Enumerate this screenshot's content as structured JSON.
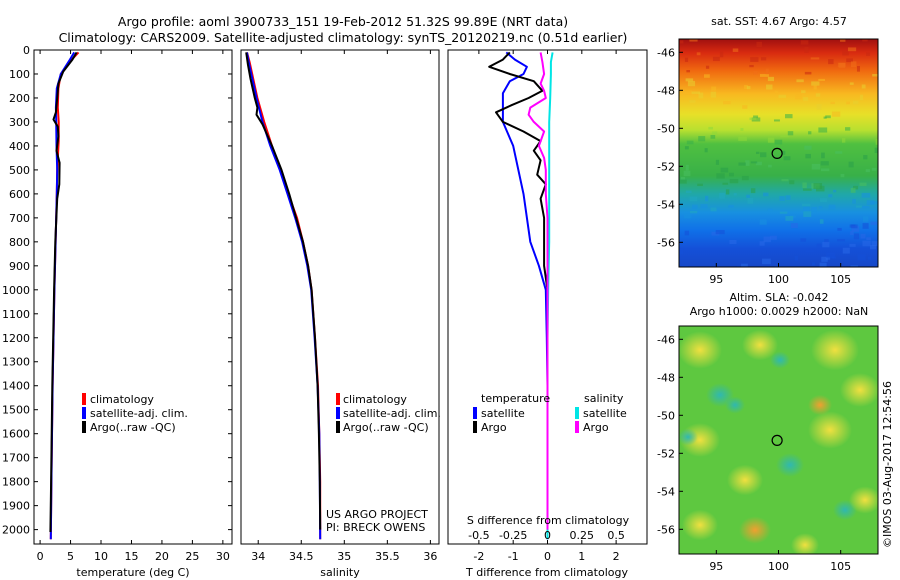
{
  "title": {
    "line1": "Argo profile: aoml 3900733_151 19-Feb-2012 51.32S 99.89E (NRT data)",
    "line2": "Climatology: CARS2009. Satellite-adjusted climatology: synTS_20120219.nc (0.51d earlier)"
  },
  "colors": {
    "climatology": "#ff0000",
    "satellite": "#0000ff",
    "argo": "#000000",
    "sal_satellite": "#00e5e5",
    "sal_argo": "#ff00ff"
  },
  "depth_axis": {
    "ticks": [
      0,
      100,
      200,
      300,
      400,
      500,
      600,
      700,
      800,
      900,
      1000,
      1100,
      1200,
      1300,
      1400,
      1500,
      1600,
      1700,
      1800,
      1900,
      2000
    ],
    "ylim": [
      0,
      2060
    ]
  },
  "legend_main": {
    "climatology": "climatology",
    "satellite": "satellite-adj. clim.",
    "argo": "Argo(..raw -QC)"
  },
  "legend_diff": {
    "temperature": "temperature",
    "salinity": "salinity",
    "satellite": "satellite",
    "argo": "Argo"
  },
  "credit": {
    "line1": "US ARGO PROJECT",
    "line2": "PI: BRECK OWENS"
  },
  "diff_top_label": "S difference from climatology",
  "map_sst_title": "sat. SST: 4.67 Argo: 4.57",
  "map_sla_title1": "Altim. SLA: -0.042",
  "map_sla_title2": "Argo h1000: 0.0029 h2000: NaN",
  "footer_vertical": "©IMOS 03-Aug-2017 12:54:56",
  "map_axes": {
    "x_ticks": [
      95,
      100,
      105
    ],
    "y_ticks": [
      -46,
      -48,
      -50,
      -52,
      -54,
      -56
    ],
    "xlim": [
      92,
      108
    ],
    "ylim": [
      -57.3,
      -45.3
    ],
    "float_lon": 99.89,
    "float_lat": -51.32
  },
  "chart_data": [
    {
      "type": "line",
      "xlabel": "temperature (deg C)",
      "ylabel": "",
      "xlim": [
        -1,
        31.5
      ],
      "x_ticks": [
        0,
        5,
        10,
        15,
        20,
        25,
        30
      ],
      "series": [
        {
          "name": "climatology",
          "color": "#ff0000",
          "points": [
            [
              6.3,
              10
            ],
            [
              5.2,
              40
            ],
            [
              3.4,
              100
            ],
            [
              3.0,
              160
            ],
            [
              2.9,
              240
            ],
            [
              3.05,
              300
            ],
            [
              3.05,
              380
            ],
            [
              2.8,
              500
            ],
            [
              2.75,
              600
            ],
            [
              2.55,
              800
            ],
            [
              2.35,
              1000
            ],
            [
              2.2,
              1200
            ],
            [
              2.05,
              1400
            ],
            [
              1.95,
              1600
            ],
            [
              1.85,
              1800
            ],
            [
              1.75,
              2040
            ]
          ]
        },
        {
          "name": "satellite-adj. clim.",
          "color": "#0000ff",
          "points": [
            [
              5.6,
              10
            ],
            [
              4.9,
              40
            ],
            [
              3.4,
              100
            ],
            [
              2.75,
              160
            ],
            [
              2.6,
              240
            ],
            [
              2.65,
              300
            ],
            [
              2.7,
              400
            ],
            [
              2.8,
              500
            ],
            [
              2.75,
              600
            ],
            [
              2.55,
              800
            ],
            [
              2.35,
              1000
            ],
            [
              2.2,
              1200
            ],
            [
              2.05,
              1400
            ],
            [
              1.95,
              1600
            ],
            [
              1.85,
              1800
            ],
            [
              1.75,
              2040
            ]
          ]
        },
        {
          "name": "Argo(..raw -QC)",
          "color": "#000000",
          "points": [
            [
              6.0,
              10
            ],
            [
              5.3,
              40
            ],
            [
              3.8,
              90
            ],
            [
              3.0,
              140
            ],
            [
              2.8,
              200
            ],
            [
              2.6,
              260
            ],
            [
              2.2,
              290
            ],
            [
              2.9,
              320
            ],
            [
              3.0,
              360
            ],
            [
              2.7,
              420
            ],
            [
              3.2,
              470
            ],
            [
              3.15,
              560
            ],
            [
              2.8,
              620
            ],
            [
              2.5,
              800
            ],
            [
              2.3,
              1000
            ],
            [
              2.15,
              1200
            ],
            [
              2.0,
              1400
            ],
            [
              1.9,
              1600
            ],
            [
              1.8,
              1800
            ],
            [
              1.7,
              2010
            ]
          ]
        }
      ]
    },
    {
      "type": "line",
      "xlabel": "salinity",
      "ylabel": "",
      "xlim": [
        33.8,
        36.1
      ],
      "x_ticks": [
        34,
        34.5,
        35,
        35.5,
        36
      ],
      "x_tick_labels": [
        "34",
        "34.5",
        "35",
        "35.5",
        "36"
      ],
      "series": [
        {
          "name": "climatology",
          "color": "#ff0000",
          "points": [
            [
              33.87,
              10
            ],
            [
              33.9,
              50
            ],
            [
              33.93,
              100
            ],
            [
              33.99,
              200
            ],
            [
              34.07,
              300
            ],
            [
              34.16,
              400
            ],
            [
              34.26,
              500
            ],
            [
              34.35,
              600
            ],
            [
              34.45,
              700
            ],
            [
              34.52,
              800
            ],
            [
              34.58,
              900
            ],
            [
              34.62,
              1000
            ],
            [
              34.66,
              1200
            ],
            [
              34.695,
              1400
            ],
            [
              34.71,
              1600
            ],
            [
              34.72,
              1800
            ],
            [
              34.72,
              2040
            ]
          ]
        },
        {
          "name": "satellite-adj. clim.",
          "color": "#0000ff",
          "points": [
            [
              33.87,
              10
            ],
            [
              33.89,
              50
            ],
            [
              33.92,
              100
            ],
            [
              33.98,
              200
            ],
            [
              34.05,
              300
            ],
            [
              34.14,
              400
            ],
            [
              34.25,
              500
            ],
            [
              34.34,
              600
            ],
            [
              34.43,
              700
            ],
            [
              34.51,
              800
            ],
            [
              34.57,
              900
            ],
            [
              34.615,
              1000
            ],
            [
              34.655,
              1200
            ],
            [
              34.69,
              1400
            ],
            [
              34.71,
              1600
            ],
            [
              34.715,
              1800
            ],
            [
              34.72,
              2040
            ]
          ]
        },
        {
          "name": "Argo(..raw -QC)",
          "color": "#000000",
          "points": [
            [
              33.86,
              10
            ],
            [
              33.88,
              60
            ],
            [
              33.91,
              120
            ],
            [
              33.96,
              200
            ],
            [
              33.99,
              240
            ],
            [
              33.98,
              270
            ],
            [
              34.05,
              310
            ],
            [
              34.16,
              400
            ],
            [
              34.27,
              500
            ],
            [
              34.36,
              600
            ],
            [
              34.44,
              700
            ],
            [
              34.52,
              800
            ],
            [
              34.58,
              900
            ],
            [
              34.62,
              1000
            ],
            [
              34.66,
              1200
            ],
            [
              34.69,
              1400
            ],
            [
              34.705,
              1600
            ],
            [
              34.715,
              1800
            ],
            [
              34.72,
              2000
            ]
          ]
        }
      ]
    },
    {
      "type": "line",
      "xlabel": "T difference from climatology",
      "ylabel": "",
      "xlim": [
        -2.9,
        2.9
      ],
      "x_ticks": [
        -2,
        -1,
        0,
        1,
        2
      ],
      "top_axis_label": "S difference from climatology",
      "top_ticks": [
        "-0.5",
        "-0.25",
        "0",
        "0.25",
        "0.5"
      ],
      "top_tick_positions": [
        -2,
        -1,
        0,
        1,
        2
      ],
      "series": [
        {
          "name": "temperature satellite",
          "color": "#0000ff",
          "points": [
            [
              -1.2,
              10
            ],
            [
              -0.95,
              40
            ],
            [
              -0.6,
              70
            ],
            [
              -0.7,
              100
            ],
            [
              -1.1,
              130
            ],
            [
              -1.3,
              180
            ],
            [
              -1.3,
              300
            ],
            [
              -1.0,
              400
            ],
            [
              -0.7,
              600
            ],
            [
              -0.5,
              800
            ],
            [
              -0.25,
              900
            ],
            [
              -0.05,
              1000
            ],
            [
              -0.02,
              1200
            ],
            [
              0,
              1400
            ],
            [
              0,
              2040
            ]
          ]
        },
        {
          "name": "temperature Argo",
          "color": "#000000",
          "points": [
            [
              -1.1,
              10
            ],
            [
              -1.3,
              40
            ],
            [
              -1.7,
              70
            ],
            [
              -1.1,
              100
            ],
            [
              -0.4,
              130
            ],
            [
              -0.15,
              170
            ],
            [
              -0.55,
              200
            ],
            [
              -1.05,
              230
            ],
            [
              -1.5,
              260
            ],
            [
              -1.3,
              300
            ],
            [
              -0.7,
              340
            ],
            [
              -0.2,
              380
            ],
            [
              -0.4,
              420
            ],
            [
              -0.2,
              460
            ],
            [
              -0.3,
              520
            ],
            [
              -0.05,
              560
            ],
            [
              -0.2,
              620
            ],
            [
              -0.1,
              700
            ],
            [
              -0.1,
              800
            ],
            [
              -0.1,
              900
            ],
            [
              0,
              1000
            ],
            [
              0,
              1200
            ],
            [
              0,
              1400
            ],
            [
              0,
              2000
            ]
          ]
        },
        {
          "name": "salinity satellite",
          "color": "#00e5e5",
          "points": [
            [
              0.15,
              10
            ],
            [
              0.1,
              50
            ],
            [
              0.1,
              100
            ],
            [
              0.08,
              200
            ],
            [
              0.05,
              300
            ],
            [
              0.05,
              500
            ],
            [
              0.05,
              800
            ],
            [
              0.02,
              1000
            ],
            [
              0,
              1200
            ],
            [
              0,
              1400
            ],
            [
              0,
              1800
            ],
            [
              0,
              2040
            ]
          ]
        },
        {
          "name": "salinity Argo",
          "color": "#ff00ff",
          "points": [
            [
              -0.2,
              10
            ],
            [
              -0.15,
              50
            ],
            [
              -0.1,
              100
            ],
            [
              -0.2,
              140
            ],
            [
              -0.1,
              170
            ],
            [
              -0.05,
              200
            ],
            [
              -0.5,
              240
            ],
            [
              -0.55,
              270
            ],
            [
              -0.4,
              300
            ],
            [
              -0.1,
              340
            ],
            [
              -0.25,
              400
            ],
            [
              -0.1,
              450
            ],
            [
              -0.05,
              500
            ],
            [
              -0.05,
              600
            ],
            [
              0,
              700
            ],
            [
              0,
              1000
            ],
            [
              0,
              2000
            ]
          ]
        }
      ]
    }
  ]
}
